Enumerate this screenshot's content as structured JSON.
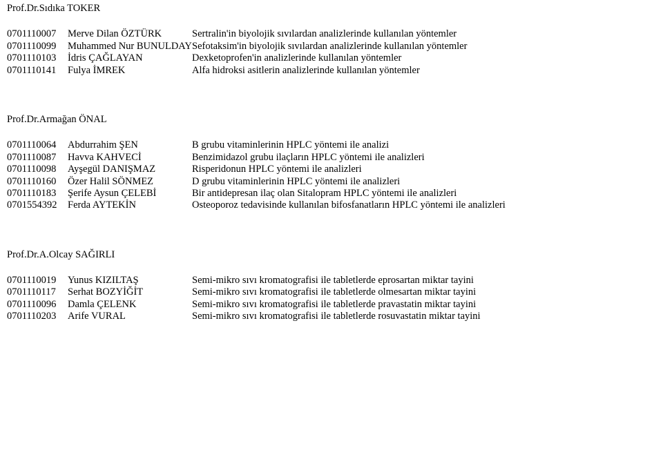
{
  "sections": [
    {
      "title": "Prof.Dr.Sıdıka TOKER",
      "rows": [
        {
          "id": "0701110007",
          "name": "Merve Dilan ÖZTÜRK",
          "desc": "Sertralin'in biyolojik sıvılardan analizlerinde kullanılan yöntemler"
        },
        {
          "id": "0701110099",
          "name": "Muhammed Nur BUNULDAY",
          "desc": "Sefotaksim'in biyolojik sıvılardan analizlerinde kullanılan yöntemler"
        },
        {
          "id": "0701110103",
          "name": "İdris ÇAĞLAYAN",
          "desc": "Dexketoprofen'in analizlerinde kullanılan yöntemler"
        },
        {
          "id": "0701110141",
          "name": "Fulya İMREK",
          "desc": "Alfa hidroksi asitlerin analizlerinde kullanılan yöntemler"
        }
      ]
    },
    {
      "title": "Prof.Dr.Armağan ÖNAL",
      "rows": [
        {
          "id": "0701110064",
          "name": "Abdurrahim ŞEN",
          "desc": "B grubu vitaminlerinin HPLC yöntemi ile analizi"
        },
        {
          "id": "0701110087",
          "name": "Havva KAHVECİ",
          "desc": "Benzimidazol grubu ilaçların HPLC yöntemi ile analizleri"
        },
        {
          "id": "0701110098",
          "name": "Ayşegül DANIŞMAZ",
          "desc": "Risperidonun HPLC yöntemi ile analizleri"
        },
        {
          "id": "0701110160",
          "name": "Özer Halil SÖNMEZ",
          "desc": "D grubu vitaminlerinin HPLC yöntemi ile analizleri"
        },
        {
          "id": "0701110183",
          "name": "Şerife Aysun ÇELEBİ",
          "desc": "Bir antidepresan ilaç olan Sitalopram HPLC yöntemi ile analizleri"
        },
        {
          "id": "0701554392",
          "name": "Ferda AYTEKİN",
          "desc": "Osteoporoz tedavisinde kullanılan bifosfanatların HPLC yöntemi ile analizleri"
        }
      ]
    },
    {
      "title": "Prof.Dr.A.Olcay SAĞIRLI",
      "rows": [
        {
          "id": "0701110019",
          "name": "Yunus KIZILTAŞ",
          "desc": "Semi-mikro sıvı kromatografisi ile tabletlerde eprosartan miktar tayini"
        },
        {
          "id": "0701110117",
          "name": "Serhat BOZYİĞİT",
          "desc": "Semi-mikro sıvı kromatografisi ile tabletlerde olmesartan miktar tayini"
        },
        {
          "id": "0701110096",
          "name": "Damla ÇELENK",
          "desc": "Semi-mikro sıvı kromatografisi ile tabletlerde pravastatin miktar tayini"
        },
        {
          "id": "0701110203",
          "name": "Arife VURAL",
          "desc": "Semi-mikro sıvı kromatografisi ile tabletlerde rosuvastatin miktar tayini"
        }
      ]
    }
  ]
}
